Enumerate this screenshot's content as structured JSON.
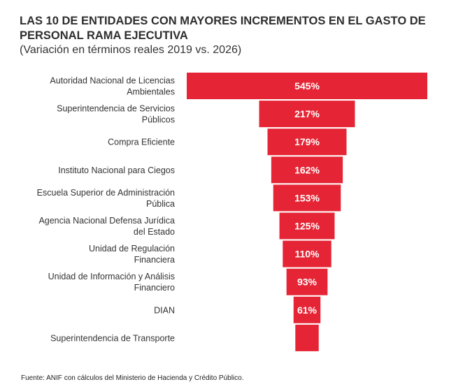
{
  "chart_data": {
    "type": "bar",
    "orientation": "horizontal-funnel",
    "title": "LAS 10 DE ENTIDADES CON MAYORES INCREMENTOS EN EL GASTO DE PERSONAL RAMA EJECUTIVA",
    "subtitle": "(Variación en términos reales 2019 vs. 2026)",
    "categories": [
      [
        "Autoridad Nacional de Licencias",
        "Ambientales"
      ],
      [
        "Superintendencia de Servicios",
        "Públicos"
      ],
      [
        "Compra Eficiente"
      ],
      [
        "Instituto Nacional para Ciegos"
      ],
      [
        "Escuela Superior de Administración",
        "Pública"
      ],
      [
        "Agencia Nacional Defensa Jurídica",
        "del Estado"
      ],
      [
        "Unidad de Regulación",
        "Financiera"
      ],
      [
        "Unidad de Información y Análisis",
        "Financiero"
      ],
      [
        "DIAN"
      ],
      [
        "Superintendencia de Transporte"
      ]
    ],
    "values": [
      545,
      217,
      179,
      162,
      153,
      125,
      110,
      93,
      61,
      53
    ],
    "data_labels": [
      "545%",
      "217%",
      "179%",
      "162%",
      "153%",
      "125%",
      "110%",
      "93%",
      "61%",
      ""
    ],
    "unit": "%",
    "bar_color": "#e52535",
    "label_color": "#ffffff",
    "grid": false,
    "legend": "none"
  },
  "source": "Fuente: ANIF con cálculos del Ministerio de Hacienda y Crédito Público."
}
